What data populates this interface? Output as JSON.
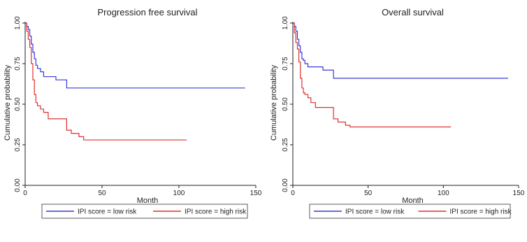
{
  "chart_data": [
    {
      "type": "line",
      "step": true,
      "title": "Progression free survival",
      "xlabel": "Month",
      "ylabel": "Cumulative probability",
      "xlim": [
        0,
        150
      ],
      "ylim": [
        0,
        1
      ],
      "xticks": [
        0,
        50,
        100,
        150
      ],
      "yticks": [
        0,
        0.25,
        0.5,
        0.75,
        1
      ],
      "xtick_labels": [
        "0",
        "50",
        "100",
        "150"
      ],
      "ytick_labels": [
        "0.00",
        "0.25",
        "0.50",
        "0.75",
        "1.00"
      ],
      "grid": false,
      "legend_position": "bottom",
      "series": [
        {
          "name": "IPI score = low risk",
          "color": "#3a3ad6",
          "x": [
            0,
            1,
            2,
            3,
            4,
            5,
            6,
            7,
            8,
            10,
            12,
            20,
            27,
            143
          ],
          "y": [
            1.0,
            0.98,
            0.96,
            0.92,
            0.87,
            0.82,
            0.78,
            0.74,
            0.72,
            0.7,
            0.67,
            0.65,
            0.6,
            0.6
          ]
        },
        {
          "name": "IPI score = high risk",
          "color": "#e03030",
          "x": [
            0,
            1,
            2,
            3,
            4,
            5,
            6,
            7,
            8,
            10,
            12,
            15,
            27,
            30,
            35,
            38,
            105
          ],
          "y": [
            1.0,
            0.95,
            0.9,
            0.85,
            0.75,
            0.65,
            0.56,
            0.51,
            0.49,
            0.47,
            0.45,
            0.41,
            0.34,
            0.32,
            0.3,
            0.28,
            0.28
          ]
        }
      ]
    },
    {
      "type": "line",
      "step": true,
      "title": "Overall survival",
      "xlabel": "Month",
      "ylabel": "Cumulative probability",
      "xlim": [
        0,
        150
      ],
      "ylim": [
        0,
        1
      ],
      "xticks": [
        0,
        50,
        100,
        150
      ],
      "yticks": [
        0,
        0.25,
        0.5,
        0.75,
        1
      ],
      "xtick_labels": [
        "0",
        "50",
        "100",
        "150"
      ],
      "ytick_labels": [
        "0.00",
        "0.25",
        "0.50",
        "0.75",
        "1.00"
      ],
      "grid": false,
      "legend_position": "bottom",
      "series": [
        {
          "name": "IPI score = low risk",
          "color": "#3a3ad6",
          "x": [
            0,
            1,
            2,
            3,
            4,
            5,
            6,
            7,
            8,
            10,
            20,
            27,
            143
          ],
          "y": [
            1.0,
            0.98,
            0.95,
            0.9,
            0.86,
            0.82,
            0.78,
            0.77,
            0.75,
            0.73,
            0.71,
            0.66,
            0.66
          ]
        },
        {
          "name": "IPI score = high risk",
          "color": "#e03030",
          "x": [
            0,
            1,
            2,
            3,
            4,
            5,
            6,
            7,
            8,
            10,
            12,
            15,
            27,
            30,
            35,
            38,
            105
          ],
          "y": [
            1.0,
            0.94,
            0.88,
            0.84,
            0.76,
            0.66,
            0.6,
            0.57,
            0.56,
            0.54,
            0.51,
            0.48,
            0.41,
            0.39,
            0.37,
            0.36,
            0.36
          ]
        }
      ]
    }
  ]
}
